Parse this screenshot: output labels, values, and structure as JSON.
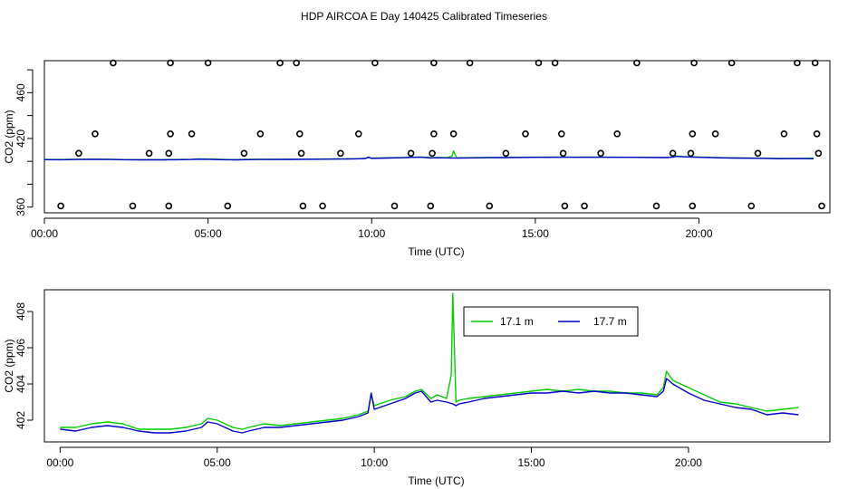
{
  "figure": {
    "title": "HDP AIRCOA E  Day 140425  Calibrated Timeseries"
  },
  "chart_data": [
    {
      "type": "scatter",
      "xlabel": "Time (UTC)",
      "ylabel": "CO2 (ppm)",
      "xlim": [
        0,
        24
      ],
      "ylim": [
        355,
        488
      ],
      "x_ticks": [
        0,
        5,
        10,
        15,
        20
      ],
      "x_tick_labels": [
        "00:00",
        "05:00",
        "10:00",
        "15:00",
        "20:00"
      ],
      "y_ticks": [
        360,
        420,
        460
      ],
      "y_tick_labels": [
        "360",
        "420",
        "460"
      ],
      "y_minor_ticks": [
        380,
        400,
        440,
        480
      ],
      "grid": false,
      "series": [
        {
          "kind": "points",
          "marker": "open-circle",
          "color": "#000000",
          "points": [
            [
              0.5,
              361
            ],
            [
              2.1,
              486
            ],
            [
              2.7,
              361
            ],
            [
              3.8,
              361
            ],
            [
              3.85,
              486
            ],
            [
              5.0,
              486
            ],
            [
              5.6,
              361
            ],
            [
              7.2,
              486
            ],
            [
              7.7,
              486
            ],
            [
              7.9,
              361
            ],
            [
              8.5,
              361
            ],
            [
              10.1,
              486
            ],
            [
              10.7,
              361
            ],
            [
              11.8,
              361
            ],
            [
              11.9,
              486
            ],
            [
              13.0,
              486
            ],
            [
              13.6,
              361
            ],
            [
              15.1,
              486
            ],
            [
              15.6,
              486
            ],
            [
              15.9,
              361
            ],
            [
              16.5,
              361
            ],
            [
              18.1,
              486
            ],
            [
              18.7,
              361
            ],
            [
              19.8,
              361
            ],
            [
              19.85,
              486
            ],
            [
              21.0,
              486
            ],
            [
              21.6,
              361
            ],
            [
              23.0,
              486
            ],
            [
              23.55,
              486
            ],
            [
              23.75,
              361
            ],
            [
              1.55,
              424
            ],
            [
              3.85,
              424
            ],
            [
              4.5,
              424
            ],
            [
              6.6,
              424
            ],
            [
              7.8,
              424
            ],
            [
              9.6,
              424
            ],
            [
              11.9,
              424
            ],
            [
              12.5,
              424
            ],
            [
              14.7,
              424
            ],
            [
              15.8,
              424
            ],
            [
              17.5,
              424
            ],
            [
              19.8,
              424
            ],
            [
              20.5,
              424
            ],
            [
              22.6,
              424
            ],
            [
              23.6,
              424
            ],
            [
              1.05,
              407
            ],
            [
              3.2,
              407
            ],
            [
              3.8,
              407
            ],
            [
              6.1,
              407
            ],
            [
              7.85,
              407
            ],
            [
              9.05,
              407
            ],
            [
              11.2,
              407
            ],
            [
              11.85,
              407
            ],
            [
              14.1,
              407
            ],
            [
              15.85,
              407
            ],
            [
              17.0,
              407
            ],
            [
              19.2,
              407
            ],
            [
              19.75,
              407
            ],
            [
              21.8,
              407
            ],
            [
              23.65,
              407
            ]
          ]
        },
        {
          "kind": "line",
          "color": "#00cc00",
          "values_from": "series_green"
        },
        {
          "kind": "line",
          "color": "#0000cc",
          "values_from": "series_blue"
        }
      ]
    },
    {
      "type": "line",
      "xlabel": "Time (UTC)",
      "ylabel": "CO2 (ppm)",
      "xlim": [
        -0.5,
        24.5
      ],
      "ylim": [
        400.8,
        409.2
      ],
      "x_ticks": [
        0,
        5,
        10,
        15,
        20
      ],
      "x_tick_labels": [
        "00:00",
        "05:00",
        "10:00",
        "15:00",
        "20:00"
      ],
      "y_ticks": [
        402,
        404,
        406,
        408
      ],
      "y_tick_labels": [
        "402",
        "404",
        "406",
        "408"
      ],
      "grid": false,
      "legend": {
        "placement": "top-center",
        "entries": [
          "17.1 m",
          "17.7 m"
        ]
      },
      "series_green": {
        "name": "17.1 m",
        "color": "#00cc00",
        "x": [
          0,
          0.5,
          1,
          1.5,
          2,
          2.5,
          3,
          3.5,
          4,
          4.5,
          4.7,
          5,
          5.5,
          5.8,
          6,
          6.5,
          7,
          7.5,
          8,
          8.5,
          9,
          9.5,
          9.8,
          9.9,
          10,
          10.5,
          11,
          11.3,
          11.5,
          11.8,
          12,
          12.3,
          12.45,
          12.5,
          12.55,
          12.6,
          12.7,
          13,
          13.5,
          14,
          14.5,
          15,
          15.5,
          16,
          16.5,
          17,
          17.5,
          18,
          18.5,
          19,
          19.2,
          19.3,
          19.5,
          20,
          20.5,
          21,
          21.5,
          22,
          22.5,
          23,
          23.5
        ],
        "values": [
          401.6,
          401.6,
          401.8,
          401.9,
          401.8,
          401.5,
          401.5,
          401.5,
          401.6,
          401.8,
          402.1,
          402.0,
          401.6,
          401.5,
          401.6,
          401.8,
          401.7,
          401.8,
          401.9,
          402.0,
          402.1,
          402.3,
          402.5,
          403.4,
          402.8,
          403.1,
          403.3,
          403.6,
          403.7,
          403.2,
          403.4,
          403.2,
          404.5,
          409.0,
          406.0,
          403.0,
          403.1,
          403.2,
          403.3,
          403.4,
          403.5,
          403.6,
          403.7,
          403.6,
          403.7,
          403.6,
          403.6,
          403.5,
          403.5,
          403.4,
          403.8,
          404.7,
          404.2,
          403.8,
          403.4,
          403.0,
          402.9,
          402.7,
          402.5,
          402.6,
          402.7
        ]
      },
      "series_blue": {
        "name": "17.7 m",
        "color": "#0000cc",
        "x": [
          0,
          0.5,
          1,
          1.5,
          2,
          2.5,
          3,
          3.5,
          4,
          4.5,
          4.7,
          5,
          5.5,
          5.8,
          6,
          6.5,
          7,
          7.5,
          8,
          8.5,
          9,
          9.5,
          9.8,
          9.9,
          10,
          10.5,
          11,
          11.3,
          11.5,
          11.8,
          12,
          12.3,
          12.5,
          12.6,
          12.7,
          13,
          13.5,
          14,
          14.5,
          15,
          15.5,
          16,
          16.5,
          17,
          17.5,
          18,
          18.5,
          19,
          19.2,
          19.3,
          19.5,
          20,
          20.5,
          21,
          21.5,
          22,
          22.5,
          23,
          23.5
        ],
        "values": [
          401.5,
          401.4,
          401.6,
          401.7,
          401.6,
          401.4,
          401.3,
          401.3,
          401.4,
          401.6,
          401.9,
          401.8,
          401.4,
          401.3,
          401.4,
          401.6,
          401.6,
          401.7,
          401.8,
          401.9,
          402.0,
          402.2,
          402.4,
          403.5,
          402.6,
          402.9,
          403.2,
          403.5,
          403.6,
          403.0,
          403.1,
          403.0,
          402.9,
          402.8,
          402.9,
          403.0,
          403.2,
          403.3,
          403.4,
          403.5,
          403.5,
          403.6,
          403.5,
          403.6,
          403.5,
          403.5,
          403.4,
          403.3,
          403.6,
          404.3,
          404.0,
          403.5,
          403.1,
          402.9,
          402.7,
          402.6,
          402.3,
          402.4,
          402.3
        ]
      }
    }
  ]
}
